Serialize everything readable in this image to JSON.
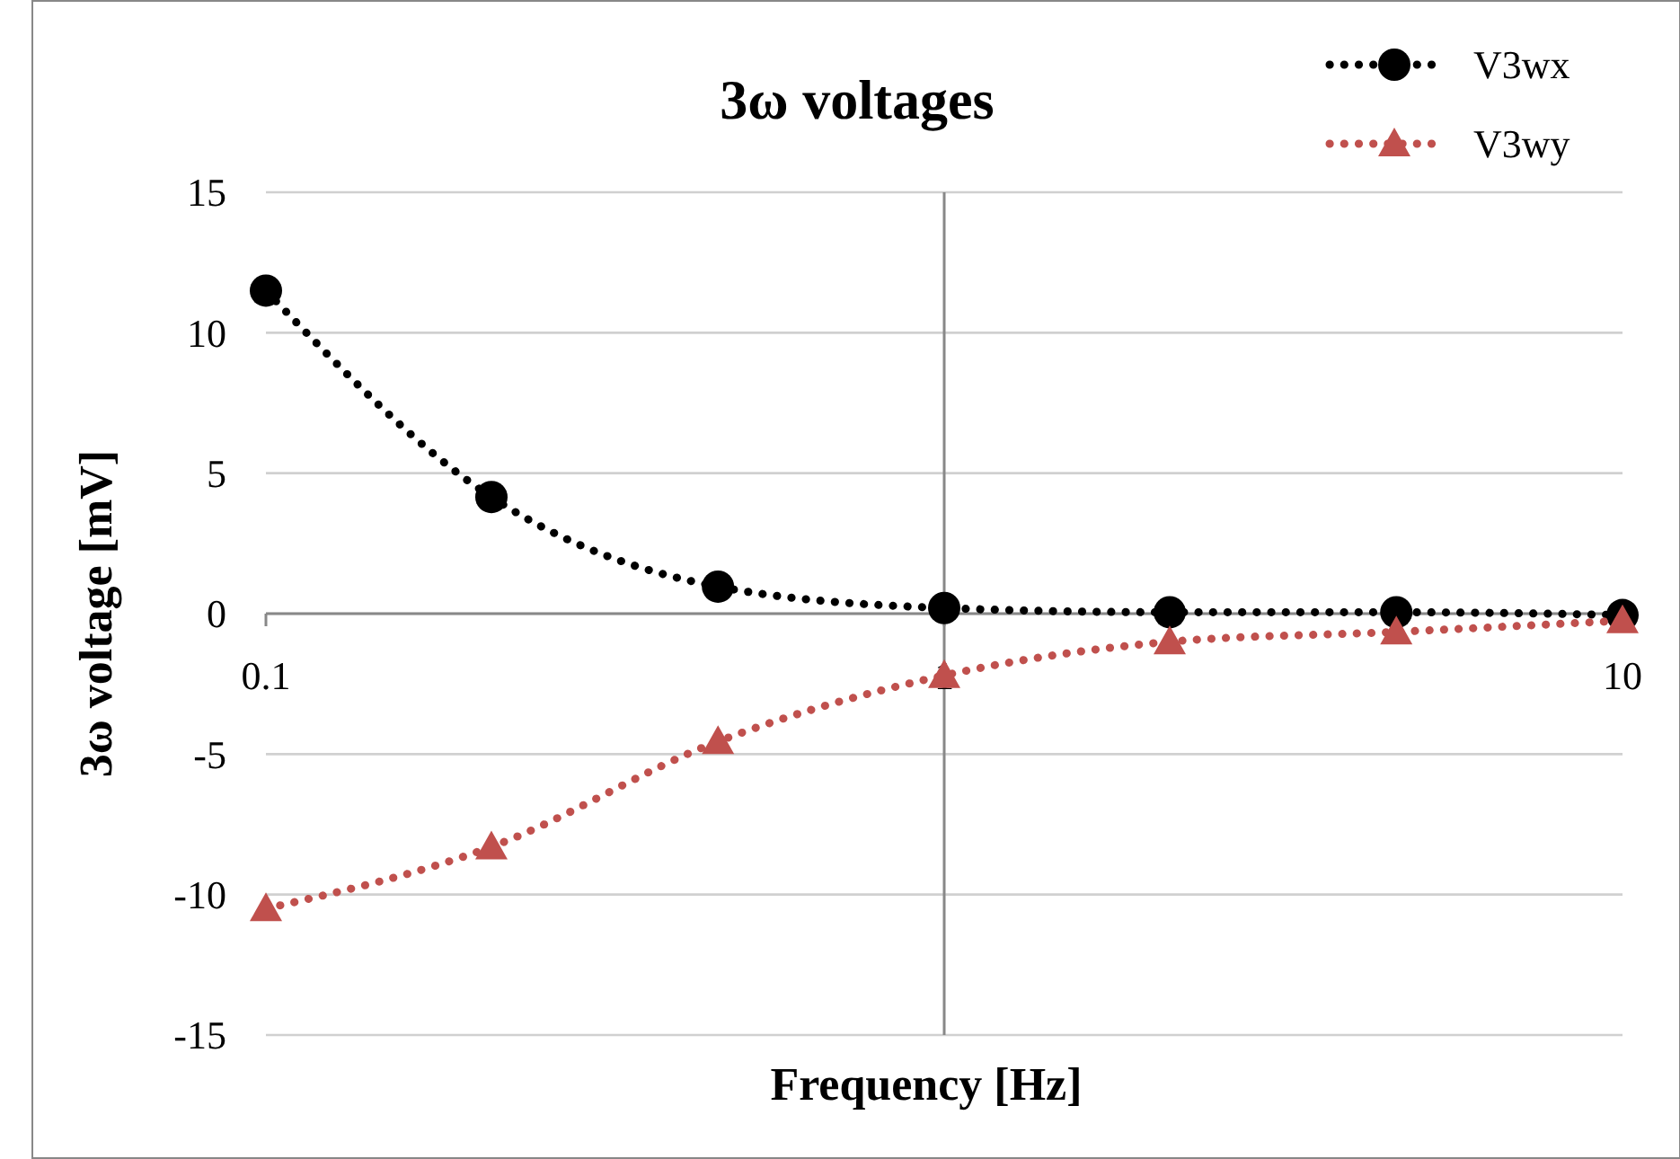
{
  "chart_data": {
    "type": "line",
    "title": "3ω voltages",
    "xlabel": "Frequency [Hz]",
    "ylabel": "3ω voltage [mV]",
    "x": [
      0.1,
      0.215,
      0.464,
      1,
      2.15,
      4.64,
      10
    ],
    "series": [
      {
        "name": "V3wx",
        "color": "#000000",
        "marker": "circle",
        "values": [
          11.5,
          4.15,
          0.96,
          0.2,
          0.05,
          0.05,
          -0.05
        ]
      },
      {
        "name": "V3wy",
        "color": "#c0504d",
        "marker": "triangle",
        "values": [
          -10.5,
          -8.3,
          -4.55,
          -2.2,
          -1.0,
          -0.65,
          -0.25
        ]
      }
    ],
    "log": "x",
    "xlim": [
      0.1,
      10
    ],
    "xticks": [
      0.1,
      1,
      10
    ],
    "ylim": [
      -15,
      15
    ],
    "yticks": [
      -15,
      -10,
      -5,
      0,
      5,
      10,
      15
    ],
    "ref_lines": [
      {
        "axis": "x",
        "value": 1,
        "color": "#888888"
      }
    ],
    "grid": "y",
    "legend": "top right",
    "line_style": "dotted"
  }
}
